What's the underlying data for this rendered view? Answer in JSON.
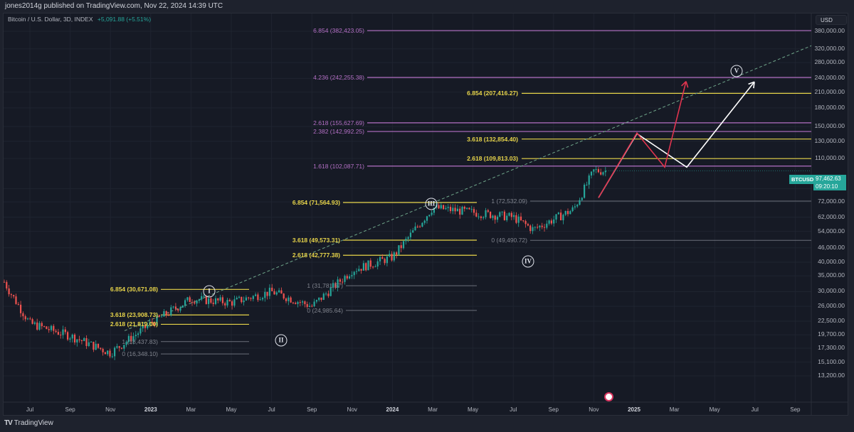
{
  "header": {
    "published": "jones2014g published on TradingView.com, Nov 22, 2024 14:39 UTC"
  },
  "legend": {
    "symbol": "Bitcoin / U.S. Dollar, 3D, INDEX",
    "change": "+5,091.88 (+5.51%)"
  },
  "currency_button": "USD",
  "price_tag": {
    "symbol": "BTCUSD",
    "price": "97,462.63",
    "countdown": "09:20:10",
    "color": "#26a69a"
  },
  "footer": {
    "brand": "TradingView",
    "logo": "TV"
  },
  "colors": {
    "background": "#161a25",
    "up": "#26a69a",
    "down": "#ef5350",
    "fib_yellow": "#e8d54a",
    "fib_purple": "#b36fc4",
    "fib_gray": "#80848e",
    "projection_red": "#e0344f",
    "projection_white": "#ffffff",
    "trendline": "#6fa58a"
  },
  "chart_data": {
    "type": "candlestick",
    "title": "Bitcoin / U.S. Dollar, 3D, INDEX",
    "xlabel": "",
    "ylabel": "USD",
    "scale": "log",
    "ylim": [
      13200,
      380000
    ],
    "y_ticks": [
      "380,000.00",
      "320,000.00",
      "280,000.00",
      "240,000.00",
      "210,000.00",
      "180,000.00",
      "150,000.00",
      "130,000.00",
      "110,000.00",
      "82,000.00",
      "72,000.00",
      "62,000.00",
      "54,000.00",
      "46,000.00",
      "40,000.00",
      "35,000.00",
      "30,000.00",
      "26,000.00",
      "22,500.00",
      "19,700.00",
      "17,300.00",
      "15,100.00",
      "13,200.00"
    ],
    "x_ticks": [
      "Jul",
      "Sep",
      "Nov",
      "2023",
      "Mar",
      "May",
      "Jul",
      "Sep",
      "Nov",
      "2024",
      "Mar",
      "May",
      "Jul",
      "Sep",
      "Nov",
      "2025",
      "Mar",
      "May",
      "Jul",
      "Sep"
    ],
    "last_price": 97462.63,
    "fib_levels": [
      {
        "label": "6.854 (382,423.05)",
        "value": 382423.05,
        "color": "purple"
      },
      {
        "label": "4.236 (242,255.38)",
        "value": 242255.38,
        "color": "purple"
      },
      {
        "label": "6.854 (207,416.27)",
        "value": 207416.27,
        "color": "yellow"
      },
      {
        "label": "2.618 (155,627.69)",
        "value": 155627.69,
        "color": "purple"
      },
      {
        "label": "2.382 (142,992.25)",
        "value": 142992.25,
        "color": "purple"
      },
      {
        "label": "3.618 (132,854.40)",
        "value": 132854.4,
        "color": "yellow"
      },
      {
        "label": "2.618 (109,813.03)",
        "value": 109813.03,
        "color": "yellow"
      },
      {
        "label": "1.618 (102,087.71)",
        "value": 102087.71,
        "color": "purple"
      },
      {
        "label": "1 (72,532.09)",
        "value": 72532.09,
        "color": "gray"
      },
      {
        "label": "6.854 (71,564.93)",
        "value": 71564.93,
        "color": "yellow"
      },
      {
        "label": "3.618 (49,573.31)",
        "value": 49573.31,
        "color": "yellow"
      },
      {
        "label": "0 (49,490.72)",
        "value": 49490.72,
        "color": "gray"
      },
      {
        "label": "2.618 (42,777.38)",
        "value": 42777.38,
        "color": "yellow"
      },
      {
        "label": "1 (31,781.57)",
        "value": 31781.57,
        "color": "gray"
      },
      {
        "label": "6.854 (30,671.08)",
        "value": 30671.08,
        "color": "yellow"
      },
      {
        "label": "0 (24,985.64)",
        "value": 24985.64,
        "color": "gray"
      },
      {
        "label": "3.618 (23,908.73)",
        "value": 23908.73,
        "color": "yellow"
      },
      {
        "label": "2.618 (21,819.00)",
        "value": 21819.0,
        "color": "yellow"
      },
      {
        "label": "1 (18,437.83)",
        "value": 18437.83,
        "color": "gray"
      },
      {
        "label": "0 (16,348.10)",
        "value": 16348.1,
        "color": "gray"
      }
    ],
    "wave_labels": [
      {
        "label": "I",
        "date": "Apr 2023",
        "approx_price": 35000
      },
      {
        "label": "II",
        "date": "Aug 2023",
        "approx_price": 21500
      },
      {
        "label": "III",
        "date": "Mar 2024",
        "approx_price": 80000
      },
      {
        "label": "IV",
        "date": "Aug 2024",
        "approx_price": 46000
      },
      {
        "label": "V",
        "date": "Jun 2025",
        "approx_price": 265000
      }
    ],
    "projections": [
      {
        "name": "red-path",
        "points": [
          [
            "Nov 2024",
            75000
          ],
          [
            "Jan 2025",
            140000
          ],
          [
            "Feb 2025",
            102000
          ],
          [
            "Mar 2025",
            240000
          ]
        ]
      },
      {
        "name": "white-path",
        "points": [
          [
            "Nov 2024",
            75000
          ],
          [
            "Jan 2025",
            140000
          ],
          [
            "Mar 2025",
            102000
          ],
          [
            "Jul 2025",
            240000
          ]
        ]
      }
    ],
    "approx_closes": [
      {
        "date": "Jun 2022",
        "price": 30000
      },
      {
        "date": "Jul 2022",
        "price": 22000
      },
      {
        "date": "Sep 2022",
        "price": 19500
      },
      {
        "date": "Nov 2022",
        "price": 16500
      },
      {
        "date": "Jan 2023",
        "price": 22000
      },
      {
        "date": "Mar 2023",
        "price": 28000
      },
      {
        "date": "May 2023",
        "price": 27000
      },
      {
        "date": "Jul 2023",
        "price": 30000
      },
      {
        "date": "Sep 2023",
        "price": 26000
      },
      {
        "date": "Nov 2023",
        "price": 37000
      },
      {
        "date": "Jan 2024",
        "price": 42000
      },
      {
        "date": "Mar 2024",
        "price": 68000
      },
      {
        "date": "May 2024",
        "price": 65000
      },
      {
        "date": "Jul 2024",
        "price": 62000
      },
      {
        "date": "Aug 2024",
        "price": 55000
      },
      {
        "date": "Oct 2024",
        "price": 67000
      },
      {
        "date": "Nov 2024",
        "price": 97462.63
      }
    ]
  }
}
